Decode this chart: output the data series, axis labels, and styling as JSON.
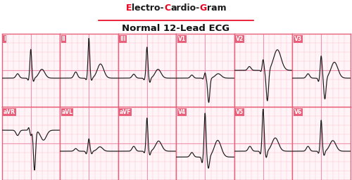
{
  "title1_parts": [
    {
      "text": "E",
      "color": "#e8001c"
    },
    {
      "text": "lectro-",
      "color": "#1a1a1a"
    },
    {
      "text": "C",
      "color": "#e8001c"
    },
    {
      "text": "ardio-",
      "color": "#1a1a1a"
    },
    {
      "text": "G",
      "color": "#e8001c"
    },
    {
      "text": "ram",
      "color": "#1a1a1a"
    }
  ],
  "title2": "Normal 12-Lead ECG",
  "grid_minor_color": "#f9c0d0",
  "grid_major_color": "#f090b0",
  "box_face": "#fff5f8",
  "box_edge": "#e8607a",
  "label_bg": "#e8607a",
  "label_fg": "#ffffff",
  "fig_bg": "#ffffff",
  "rows_leads": [
    [
      "I",
      "II",
      "III",
      "V1",
      "V2",
      "V3"
    ],
    [
      "aVR",
      "aVL",
      "aVF",
      "V4",
      "V5",
      "V6"
    ]
  ]
}
